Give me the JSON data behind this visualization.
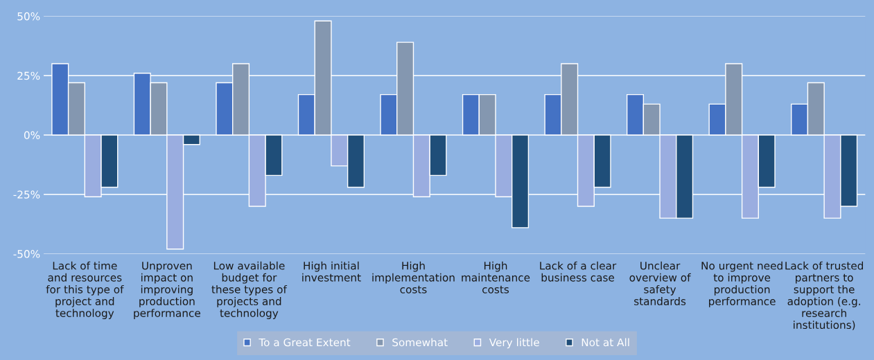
{
  "chart_data": {
    "type": "bar",
    "categories": [
      "Lack of time\nand resources\nfor this type of\nproject and\ntechnology",
      "Unproven\nimpact on\nimproving\nproduction\nperformance",
      "Low available\nbudget for\nthese types of\nprojects and\ntechnology",
      "High initial\ninvestment",
      "High\nimplementation\ncosts",
      "High\nmaintenance\ncosts",
      "Lack of a clear\nbusiness case",
      "Unclear\noverview of\nsafety\nstandards",
      "No urgent need\nto improve\nproduction\nperformance",
      "Lack of trusted\npartners to\nsupport the\nadoption (e.g.\nresearch\ninstitutions)"
    ],
    "series": [
      {
        "name": "To a Great Extent",
        "color": "#4472c4",
        "values": [
          30,
          26,
          22,
          17,
          17,
          17,
          17,
          17,
          13,
          13
        ]
      },
      {
        "name": "Somewhat",
        "color": "#8497b0",
        "values": [
          22,
          22,
          30,
          48,
          39,
          17,
          30,
          13,
          30,
          22
        ]
      },
      {
        "name": "Very little",
        "color": "#9aade0",
        "values": [
          -26,
          -48,
          -30,
          -13,
          -26,
          -26,
          -30,
          -35,
          -35,
          -35
        ]
      },
      {
        "name": "Not at All",
        "color": "#1f4e79",
        "values": [
          -22,
          -4,
          -17,
          -22,
          -17,
          -39,
          -22,
          -35,
          -22,
          -30
        ]
      }
    ],
    "ylim": [
      -50,
      50
    ],
    "yticks": [
      {
        "value": -50,
        "label": "-50%"
      },
      {
        "value": -25,
        "label": "-25%"
      },
      {
        "value": 0,
        "label": "0%"
      },
      {
        "value": 25,
        "label": "25%"
      },
      {
        "value": 50,
        "label": "50%"
      }
    ],
    "grid": "y",
    "legend": "bottom"
  }
}
